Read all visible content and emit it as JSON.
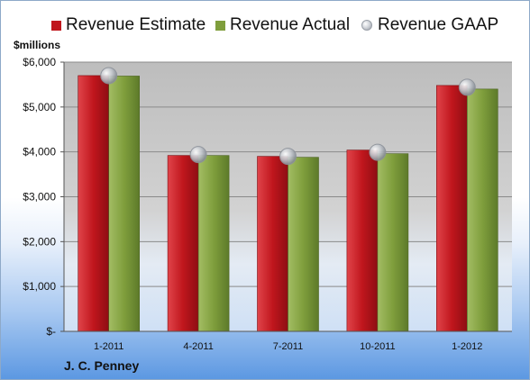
{
  "legend": {
    "estimate_label": "Revenue Estimate",
    "actual_label": "Revenue Actual",
    "gaap_label": "Revenue GAAP"
  },
  "y_unit_label": "$millions",
  "company": "J. C. Penney",
  "colors": {
    "estimate": "#c0161d",
    "actual": "#7f9e3c",
    "gaap": "#b8bcc2",
    "plot_bg": "#c6c6c6"
  },
  "chart_data": {
    "type": "bar",
    "categories": [
      "1-2011",
      "4-2011",
      "7-2011",
      "10-2011",
      "1-2012"
    ],
    "series": [
      {
        "name": "Revenue Estimate",
        "kind": "bar",
        "values": [
          5700,
          3920,
          3900,
          4040,
          5480
        ]
      },
      {
        "name": "Revenue Actual",
        "kind": "bar",
        "values": [
          5690,
          3920,
          3880,
          3960,
          5400
        ]
      },
      {
        "name": "Revenue GAAP",
        "kind": "marker",
        "values": [
          5700,
          3940,
          3900,
          3990,
          5440
        ]
      }
    ],
    "ylim": [
      0,
      6000
    ],
    "yticks": [
      0,
      1000,
      2000,
      3000,
      4000,
      5000,
      6000
    ],
    "ytick_labels": [
      "$-",
      "$1,000",
      "$2,000",
      "$3,000",
      "$4,000",
      "$5,000",
      "$6,000"
    ],
    "grid": true,
    "legend_position": "top"
  }
}
